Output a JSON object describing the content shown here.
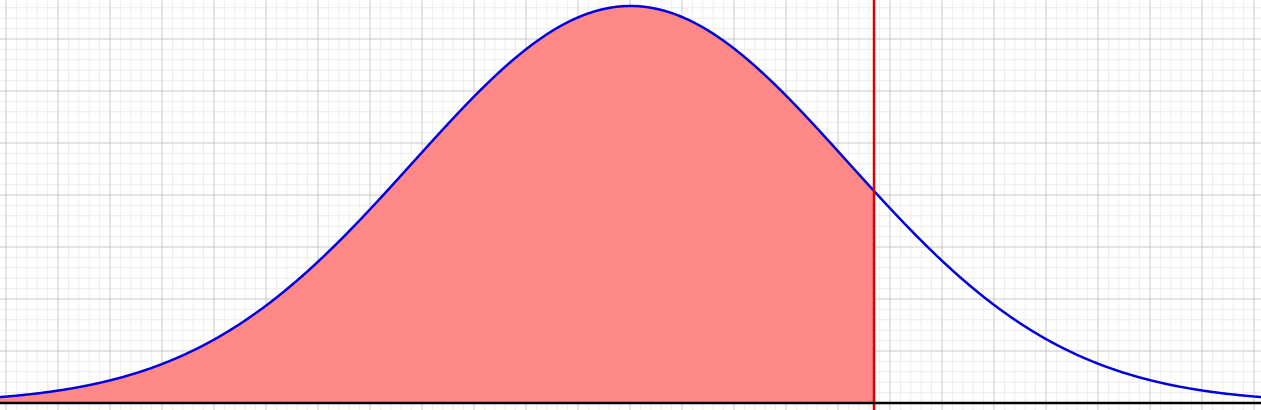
{
  "chart_data": {
    "type": "area",
    "title": "",
    "xlabel": "",
    "ylabel": "",
    "distribution": "normal",
    "mean": 0,
    "std_dev": 1,
    "xlim": [
      -2.9,
      2.9
    ],
    "ylim": [
      0,
      0.4
    ],
    "shaded_region": {
      "from": -2.9,
      "to": 1.12
    },
    "threshold_x": 1.12,
    "grid": true,
    "colors": {
      "curve": "#0000dd",
      "fill": "#ff7f7f",
      "threshold": "#dd0000",
      "axis": "#000000",
      "grid_major": "#c8c8c8",
      "grid_minor": "#ececec"
    }
  }
}
